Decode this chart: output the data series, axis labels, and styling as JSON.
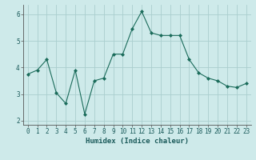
{
  "x": [
    0,
    1,
    2,
    3,
    4,
    5,
    6,
    7,
    8,
    9,
    10,
    11,
    12,
    13,
    14,
    15,
    16,
    17,
    18,
    19,
    20,
    21,
    22,
    23
  ],
  "y": [
    3.75,
    3.9,
    4.3,
    3.05,
    2.65,
    3.9,
    2.25,
    3.5,
    3.6,
    4.5,
    4.5,
    5.45,
    6.1,
    5.3,
    5.2,
    5.2,
    5.2,
    4.3,
    3.8,
    3.6,
    3.5,
    3.3,
    3.25,
    3.4
  ],
  "line_color": "#1a6b5a",
  "marker": "D",
  "marker_size": 2.0,
  "bg_color": "#ceeaea",
  "grid_color": "#aacece",
  "xlabel": "Humidex (Indice chaleur)",
  "xlim": [
    -0.5,
    23.5
  ],
  "ylim": [
    1.85,
    6.35
  ],
  "yticks": [
    2,
    3,
    4,
    5,
    6
  ],
  "xticks": [
    0,
    1,
    2,
    3,
    4,
    5,
    6,
    7,
    8,
    9,
    10,
    11,
    12,
    13,
    14,
    15,
    16,
    17,
    18,
    19,
    20,
    21,
    22,
    23
  ],
  "xtick_labels": [
    "0",
    "1",
    "2",
    "3",
    "4",
    "5",
    "6",
    "7",
    "8",
    "9",
    "10",
    "11",
    "12",
    "13",
    "14",
    "15",
    "16",
    "17",
    "18",
    "19",
    "20",
    "21",
    "22",
    "23"
  ],
  "tick_fontsize": 5.5,
  "xlabel_fontsize": 6.5,
  "line_width": 0.8
}
